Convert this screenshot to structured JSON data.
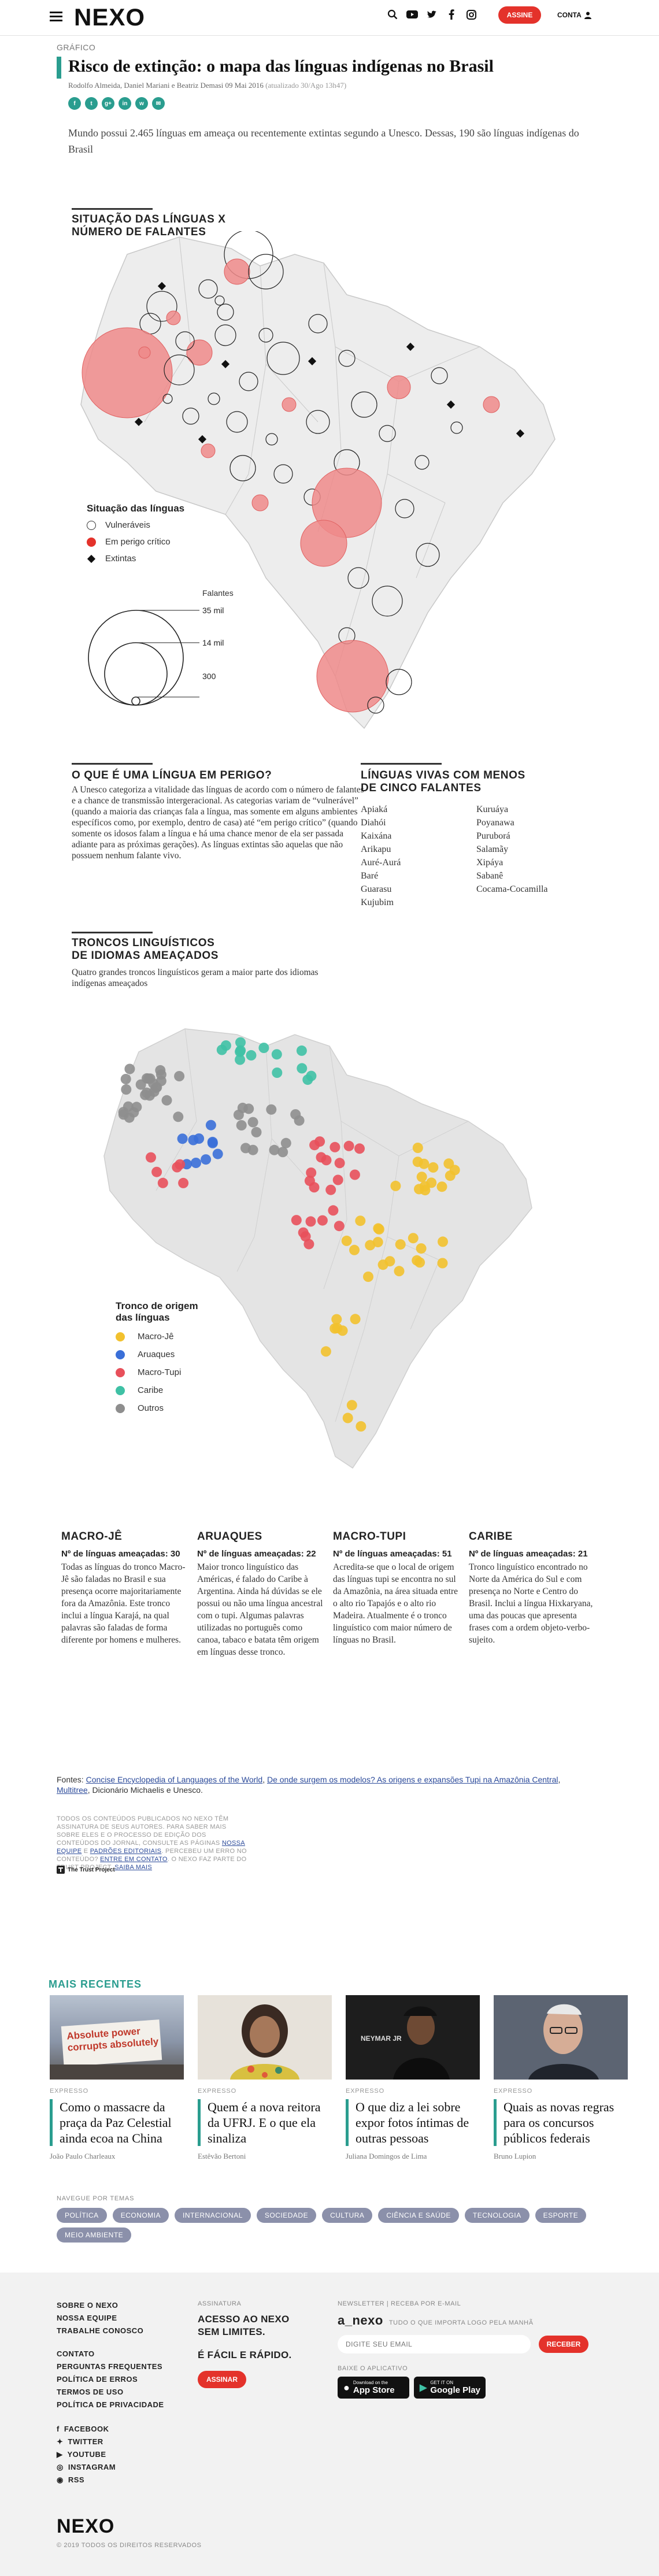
{
  "header": {
    "logo": "NEXO",
    "assine": "ASSINE",
    "conta": "CONTA"
  },
  "article": {
    "kicker": "GRÁFICO",
    "title": "Risco de extinção: o mapa das línguas indígenas no Brasil",
    "byline": "Rodolfo Almeida, Daniel Mariani e Beatriz Demasi 09 Mai 2016",
    "updated": "(atualizado 30/Ago 13h47)",
    "lead": "Mundo possui 2.465 línguas em ameaça ou recentemente extintas segundo a Unesco. Dessas, 190 são línguas indígenas do Brasil",
    "share": [
      "f",
      "t",
      "g+",
      "in",
      "w",
      "✉"
    ]
  },
  "map1": {
    "title_line1": "SITUAÇÃO DAS LÍNGUAS X",
    "title_line2": "NÚMERO DE FALANTES",
    "legend_title": "Situação das línguas",
    "legend": [
      {
        "label": "Vulneráveis",
        "color": "#ffffff"
      },
      {
        "label": "Em perigo crítico",
        "color": "#e4322b"
      },
      {
        "label": "Extintas",
        "color": "#111111"
      }
    ],
    "size_title": "Falantes",
    "sizes": [
      "35 mil",
      "14 mil",
      "300"
    ]
  },
  "info": {
    "q_title": "O QUE É UMA LÍNGUA EM PERIGO?",
    "q_text": "A Unesco categoriza a vitalidade das línguas de acordo com o número de falantes e a chance de transmissão intergeracional. As categorias variam de “vulnerável” (quando a maioria das crianças fala a língua, mas somente em alguns ambientes específicos como, por exemplo, dentro de casa) até “em perigo crítico” (quando somente os idosos falam a língua e há uma chance menor de ela ser passada adiante para as próximas gerações). As línguas extintas são aquelas que não possuem nenhum falante vivo.",
    "l_title_line1": "LÍNGUAS VIVAS COM MENOS",
    "l_title_line2": "DE CINCO FALANTES",
    "col1": [
      "Apiaká",
      "Diahói",
      "Kaixána",
      "Arikapu",
      "Auré-Aurá",
      "Baré",
      "Guarasu",
      "Kujubim"
    ],
    "col2": [
      "Kuruáya",
      "Poyanawa",
      "Puruborá",
      "Salamãy",
      "Xipáya",
      "Sabanê",
      "Cocama-Cocamilla"
    ]
  },
  "map2": {
    "title_line1": "TRONCOS LINGUÍSTICOS",
    "title_line2": "DE IDIOMAS AMEAÇADOS",
    "subtitle": "Quatro grandes troncos linguísticos geram a maior parte dos idiomas indígenas ameaçados",
    "legend_title_line1": "Tronco de origem",
    "legend_title_line2": "das línguas",
    "legend": [
      {
        "label": "Macro-Jê",
        "color": "#f2c12e"
      },
      {
        "label": "Aruaques",
        "color": "#3a6fd8"
      },
      {
        "label": "Macro-Tupi",
        "color": "#e8505b"
      },
      {
        "label": "Caribe",
        "color": "#3fc1a5"
      },
      {
        "label": "Outros",
        "color": "#8e8e8e"
      }
    ]
  },
  "trunks": [
    {
      "name": "MACRO-JÊ",
      "count": "Nº de línguas ameaçadas: 30",
      "text": "Todas as línguas do tronco Macro-Jê são faladas no Brasil e sua presença ocorre majoritariamente fora da Amazônia. Este tronco inclui a língua Karajá, na qual palavras são faladas de forma diferente por homens e mulheres."
    },
    {
      "name": "ARUAQUES",
      "count": "Nº de línguas ameaçadas: 22",
      "text": "Maior tronco linguístico das Américas, é falado do Caribe à Argentina. Ainda há dúvidas se ele possui ou não uma língua ancestral com o tupi. Algumas palavras utilizadas no português como canoa, tabaco e batata têm origem em línguas desse tronco."
    },
    {
      "name": "MACRO-TUPI",
      "count": "Nº de línguas ameaçadas: 51",
      "text": "Acredita-se que o local de origem das línguas tupi se encontra no sul da Amazônia, na área situada entre o alto rio Tapajós e o alto rio Madeira. Atualmente é o tronco linguístico com maior número de línguas no Brasil."
    },
    {
      "name": "CARIBE",
      "count": "Nº de línguas ameaçadas: 21",
      "text": "Tronco linguístico encontrado no Norte da América do Sul e com presença no Norte e Centro do Brasil. Inclui a língua Hixkaryana, uma das poucas que apresenta frases com a ordem objeto-verbo-sujeito."
    }
  ],
  "sources": {
    "label": "Fontes:",
    "link1": "Concise Encyclopedia of Languages of the World",
    "link2": "De onde surgem os modelos? As origens e expansões Tupi na Amazônia Central",
    "link3": "Multitree",
    "tail": ", Dicionário Michaelis e Unesco."
  },
  "disclaimer": {
    "text": "TODOS OS CONTEÚDOS PUBLICADOS NO NEXO TÊM ASSINATURA DE SEUS AUTORES. PARA SABER MAIS SOBRE ELES E O PROCESSO DE EDIÇÃO DOS CONTEÚDOS DO JORNAL, CONSULTE AS PÁGINAS",
    "link1": "NOSSA EQUIPE",
    "and": "E",
    "link2": "PADRÕES EDITORIAIS",
    "text2": ". PERCEBEU UM ERRO NO CONTEÚDO?",
    "link3": "ENTRE EM CONTATO",
    "text3": ". O NEXO FAZ PARTE DO TRUST PROJECT.",
    "link4": "SAIBA MAIS",
    "trust": "The Trust Project"
  },
  "recent": {
    "title": "MAIS RECENTES",
    "cards": [
      {
        "tag": "EXPRESSO",
        "headline": "Como o massacre da praça da Paz Celestial ainda ecoa na China",
        "author": "João Paulo Charleaux",
        "thumb_text": "Absolute power corrupts absolutely"
      },
      {
        "tag": "EXPRESSO",
        "headline": "Quem é a nova reitora da UFRJ. E o que ela sinaliza",
        "author": "Estêvão Bertoni",
        "thumb_text": ""
      },
      {
        "tag": "EXPRESSO",
        "headline": "O que diz a lei sobre expor fotos íntimas de outras pessoas",
        "author": "Juliana Domingos de Lima",
        "thumb_text": "NEYMAR JR"
      },
      {
        "tag": "EXPRESSO",
        "headline": "Quais as novas regras para os concursos públicos federais",
        "author": "Bruno Lupion",
        "thumb_text": ""
      }
    ]
  },
  "themes": {
    "label": "NAVEGUE POR TEMAS",
    "items": [
      "POLÍTICA",
      "ECONOMIA",
      "INTERNACIONAL",
      "SOCIEDADE",
      "CULTURA",
      "CIÊNCIA E SAÚDE",
      "TECNOLOGIA",
      "ESPORTE",
      "MEIO AMBIENTE"
    ]
  },
  "footer": {
    "links1": [
      "SOBRE O NEXO",
      "NOSSA EQUIPE",
      "TRABALHE CONOSCO"
    ],
    "links2": [
      "CONTATO",
      "PERGUNTAS FREQUENTES",
      "POLÍTICA DE ERROS",
      "TERMOS DE USO",
      "POLÍTICA DE PRIVACIDADE"
    ],
    "social": [
      "FACEBOOK",
      "TWITTER",
      "YOUTUBE",
      "INSTAGRAM",
      "RSS"
    ],
    "sub_label": "ASSINATURA",
    "sub_line1": "ACESSO AO NEXO",
    "sub_line2": "SEM LIMITES.",
    "sub_line3": "É FÁCIL E RÁPIDO.",
    "sub_button": "ASSINAR",
    "news_label": "NEWSLETTER | RECEBA POR E-MAIL",
    "news_brand": "a_nexo",
    "news_tagline": "TUDO O QUE IMPORTA LOGO PELA MANHÃ",
    "news_placeholder": "DIGITE SEU EMAIL",
    "news_button": "RECEBER",
    "app_label": "BAIXE O APLICATIVO",
    "appstore_small": "Download on the",
    "appstore": "App Store",
    "gplay_small": "GET IT ON",
    "gplay": "Google Play",
    "logo": "NEXO",
    "copyright": "© 2019 TODOS OS DIREITOS RESERVADOS"
  }
}
